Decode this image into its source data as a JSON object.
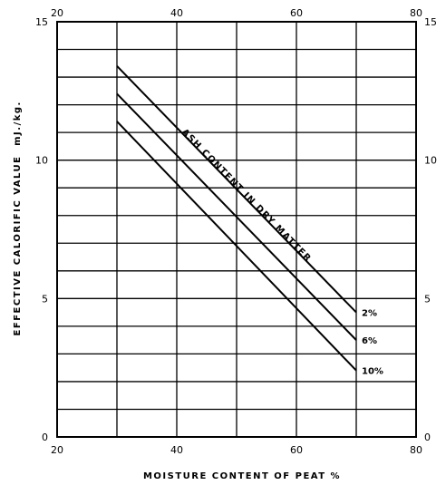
{
  "chart_data": {
    "type": "line",
    "title": "",
    "xlabel": "MOISTURE CONTENT OF PEAT %",
    "ylabel": "EFFECTIVE CALORIFIC VALUE",
    "ylabel_unit": "mJ./kg.",
    "xlim": [
      20,
      80
    ],
    "ylim": [
      0,
      15
    ],
    "x_ticks": [
      20,
      40,
      60,
      80
    ],
    "y_ticks": [
      0,
      5,
      10,
      15
    ],
    "x_gridlines": [
      20,
      30,
      40,
      50,
      60,
      70,
      80
    ],
    "y_gridlines": [
      0,
      1,
      2,
      3,
      4,
      5,
      6,
      7,
      8,
      9,
      10,
      11,
      12,
      13,
      14,
      15
    ],
    "grid": true,
    "annotation": "ASH CONTENT IN DRY MATTER",
    "series": [
      {
        "name": "2%",
        "x": [
          30,
          70
        ],
        "y": [
          13.4,
          4.5
        ]
      },
      {
        "name": "6%",
        "x": [
          30,
          70
        ],
        "y": [
          12.4,
          3.5
        ]
      },
      {
        "name": "10%",
        "x": [
          30,
          70
        ],
        "y": [
          11.4,
          2.4
        ]
      }
    ]
  }
}
